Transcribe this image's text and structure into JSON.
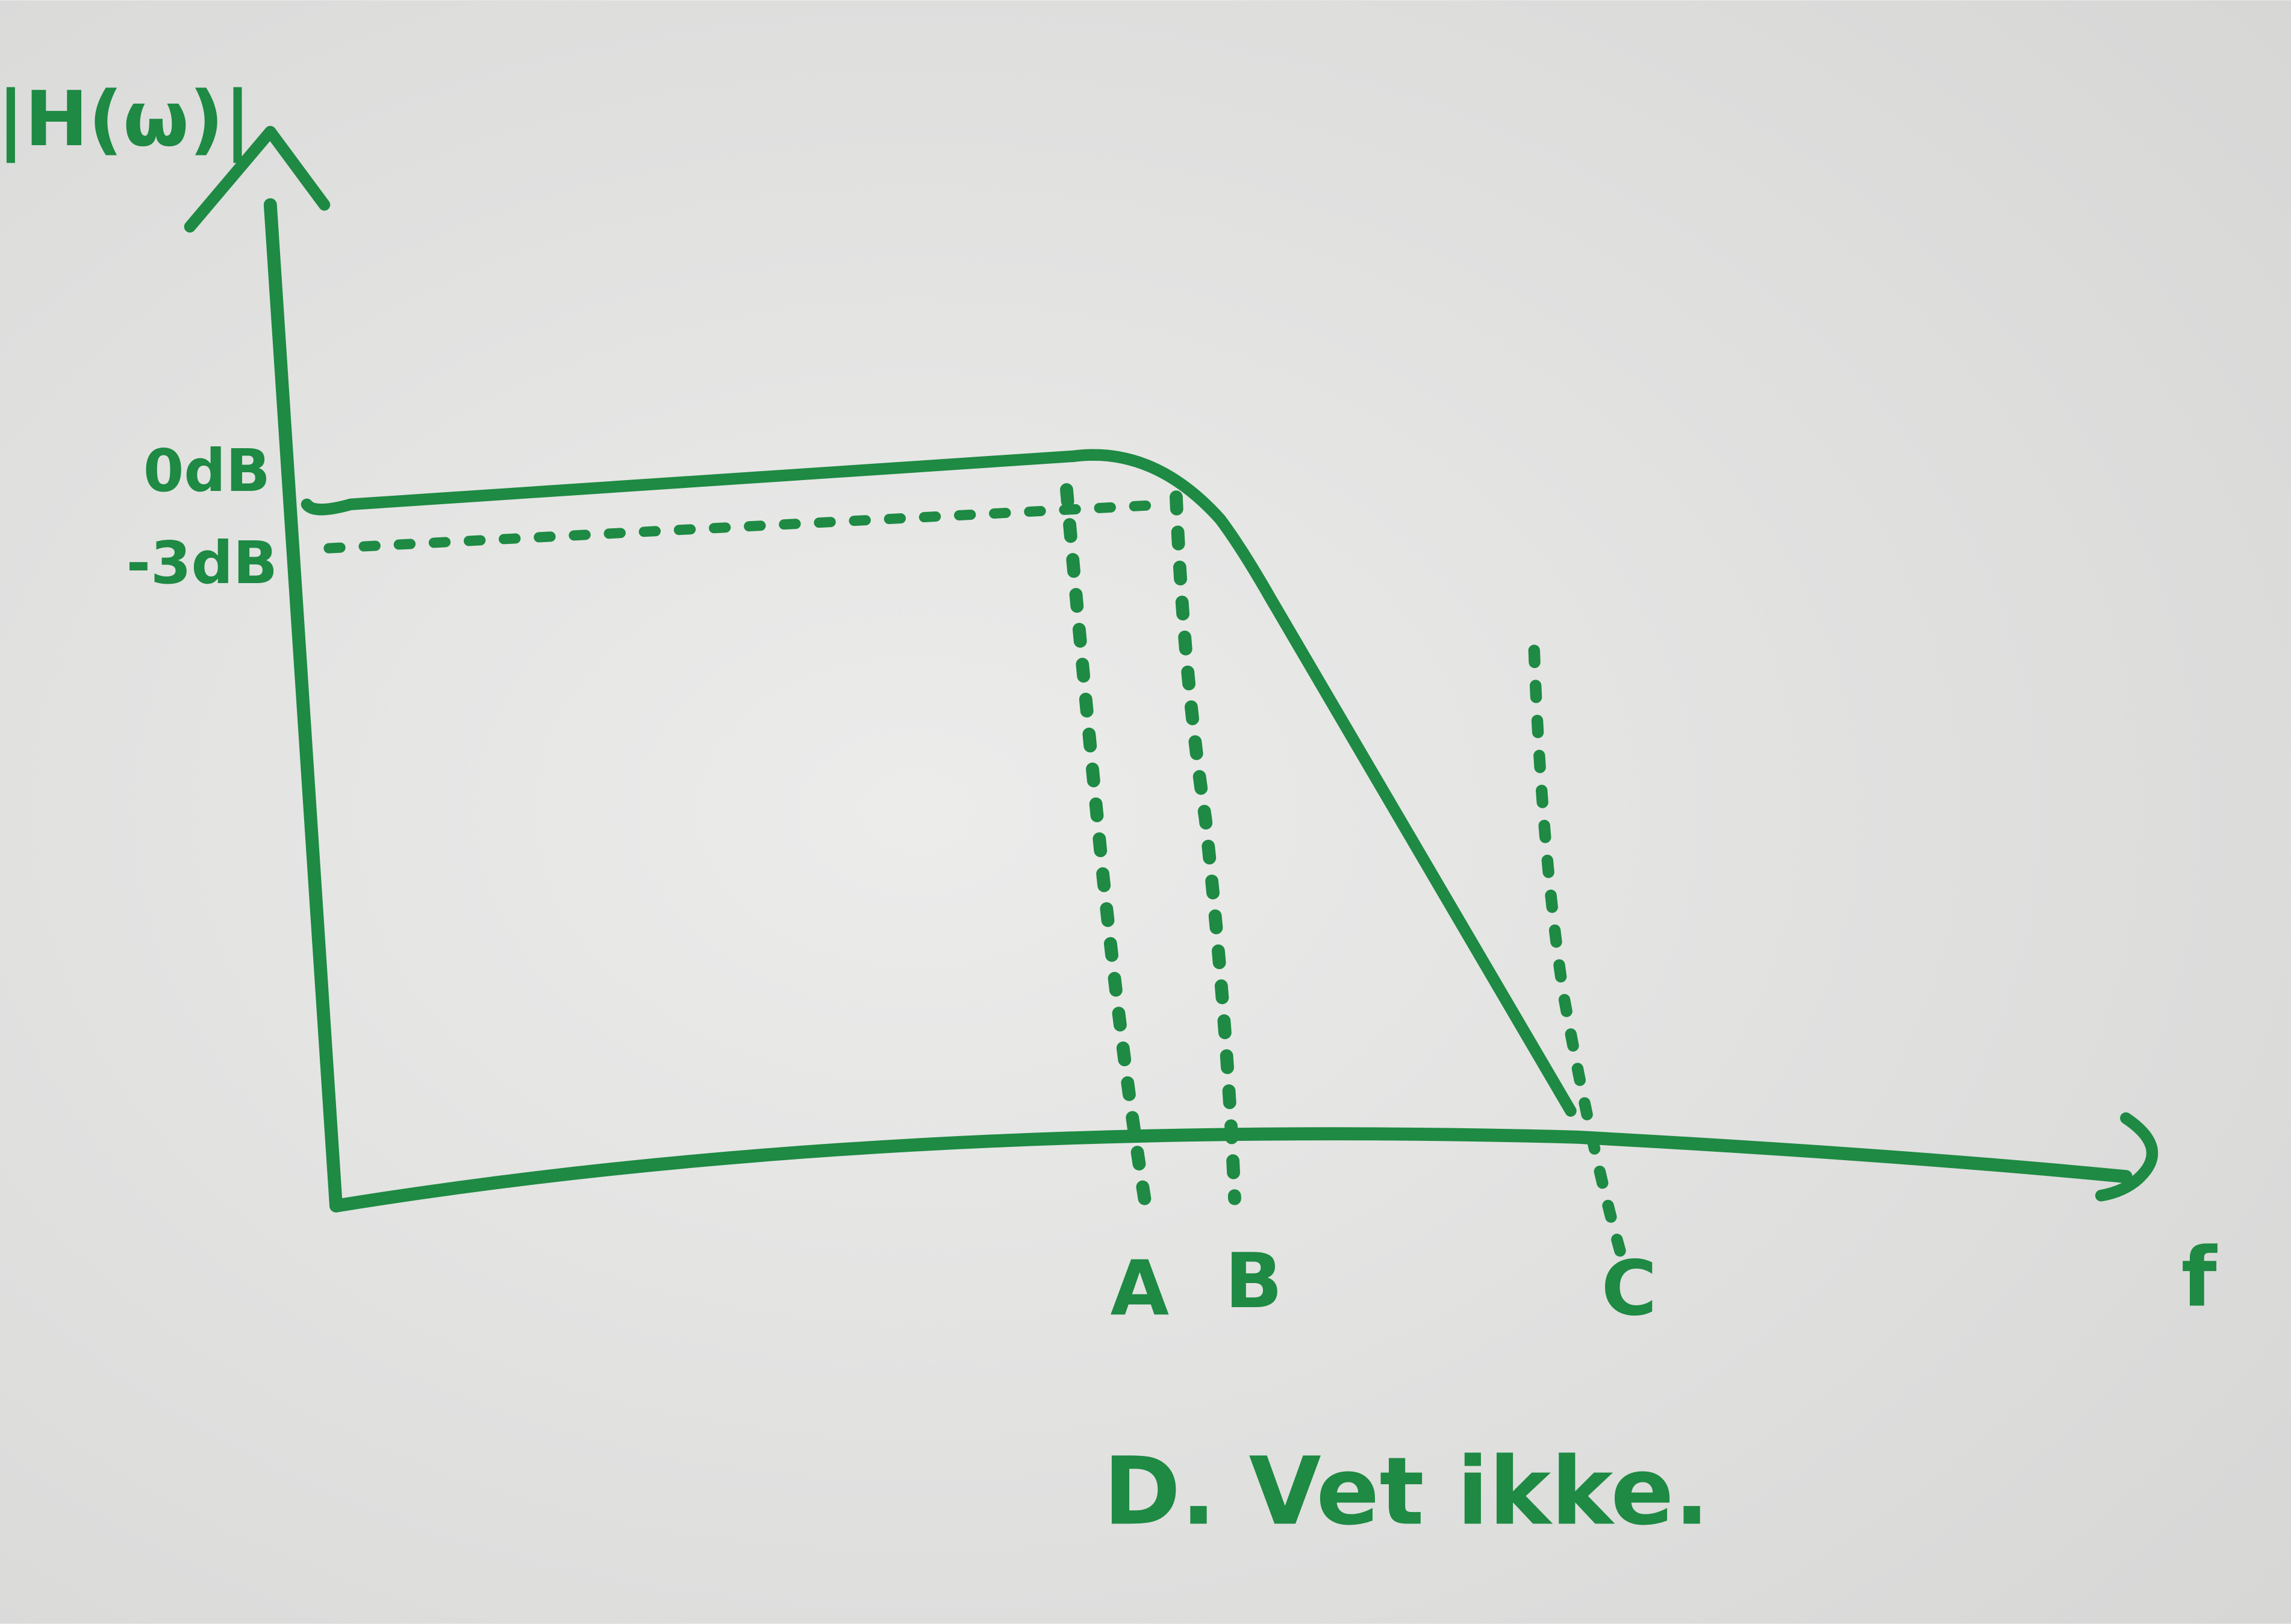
{
  "axes": {
    "y_label": "|H(ω)|",
    "x_label": "f",
    "levels": [
      "0dB",
      "-3dB"
    ]
  },
  "markers": [
    "A",
    "B",
    "C"
  ],
  "answer": "D. Vet ikke."
}
